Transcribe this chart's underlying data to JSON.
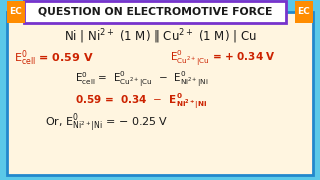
{
  "bg_color": "#5BC8E8",
  "content_bg": "#FFF5E0",
  "title_text": "QUESTION ON ELECTROMOTIVE FORCE",
  "title_bg": "#FFFFFF",
  "title_border": "#7733CC",
  "ec_bg": "#FF8C00",
  "black_color": "#1a1a1a",
  "red_color": "#CC2200",
  "blue_border": "#2288CC",
  "figsize": [
    3.2,
    1.8
  ],
  "dpi": 100
}
